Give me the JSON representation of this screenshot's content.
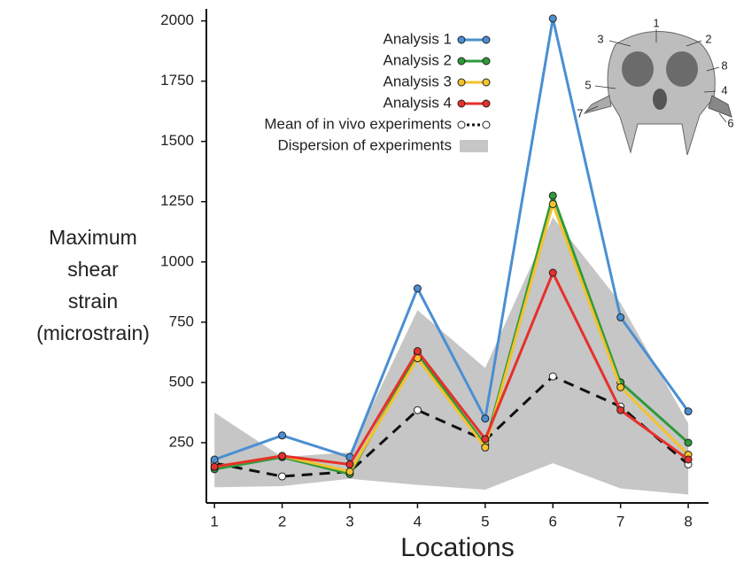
{
  "chart_data": {
    "type": "line",
    "xlabel": "Locations",
    "ylabel": [
      "Maximum",
      "shear",
      "strain",
      "(microstrain)"
    ],
    "x": [
      1,
      2,
      3,
      4,
      5,
      6,
      7,
      8
    ],
    "xlim": [
      0.88,
      8.3
    ],
    "xticks": [
      1,
      2,
      3,
      4,
      5,
      6,
      7,
      8
    ],
    "ylim": [
      0,
      2050
    ],
    "yticks": [
      250,
      500,
      750,
      1000,
      1250,
      1500,
      1750,
      2000
    ],
    "grid": false,
    "legend": "upper right",
    "band": {
      "name": "Dispersion of experiments",
      "color": "#c6c6c6",
      "low": [
        65,
        70,
        100,
        75,
        55,
        165,
        60,
        35
      ],
      "high": [
        375,
        190,
        210,
        800,
        560,
        1185,
        830,
        330
      ]
    },
    "series": [
      {
        "name": "Analysis 1",
        "color": "#4a8fd2",
        "marker_color": "#4a8fd2",
        "dashed": false,
        "values": [
          180,
          280,
          190,
          890,
          350,
          2010,
          770,
          380
        ]
      },
      {
        "name": "Analysis 2",
        "color": "#2f9a3a",
        "marker_color": "#2f9a3a",
        "dashed": false,
        "values": [
          140,
          190,
          120,
          620,
          240,
          1275,
          500,
          250
        ]
      },
      {
        "name": "Analysis 3",
        "color": "#f3c22e",
        "marker_color": "#f3c22e",
        "dashed": false,
        "values": [
          150,
          195,
          130,
          600,
          230,
          1240,
          480,
          200
        ]
      },
      {
        "name": "Analysis 4",
        "color": "#e6302a",
        "marker_color": "#e6302a",
        "dashed": false,
        "values": [
          150,
          195,
          160,
          630,
          265,
          955,
          385,
          180
        ]
      },
      {
        "name": "Mean of in vivo experiments",
        "color": "#111111",
        "marker_color": "#ffffff",
        "dashed": true,
        "values": [
          165,
          110,
          130,
          385,
          260,
          525,
          400,
          160
        ]
      }
    ],
    "inset_labels": [
      "1",
      "2",
      "3",
      "4",
      "5",
      "6",
      "7",
      "8"
    ]
  }
}
